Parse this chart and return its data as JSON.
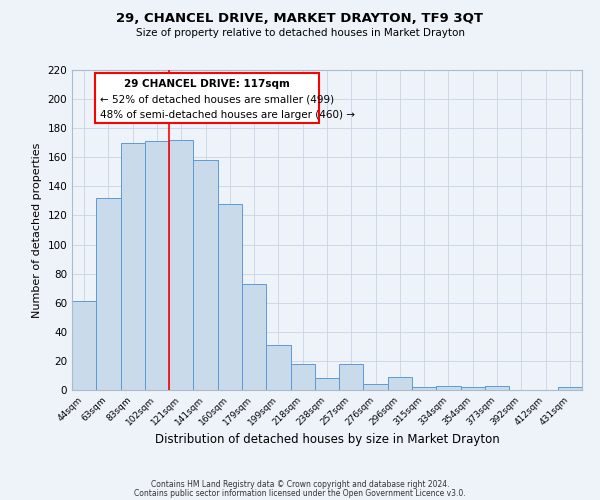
{
  "title": "29, CHANCEL DRIVE, MARKET DRAYTON, TF9 3QT",
  "subtitle": "Size of property relative to detached houses in Market Drayton",
  "xlabel": "Distribution of detached houses by size in Market Drayton",
  "ylabel": "Number of detached properties",
  "footer_line1": "Contains HM Land Registry data © Crown copyright and database right 2024.",
  "footer_line2": "Contains public sector information licensed under the Open Government Licence v3.0.",
  "bin_labels": [
    "44sqm",
    "63sqm",
    "83sqm",
    "102sqm",
    "121sqm",
    "141sqm",
    "160sqm",
    "179sqm",
    "199sqm",
    "218sqm",
    "238sqm",
    "257sqm",
    "276sqm",
    "296sqm",
    "315sqm",
    "334sqm",
    "354sqm",
    "373sqm",
    "392sqm",
    "412sqm",
    "431sqm"
  ],
  "bar_values": [
    61,
    132,
    170,
    171,
    172,
    158,
    128,
    73,
    31,
    18,
    8,
    18,
    4,
    9,
    2,
    3,
    2,
    3,
    0,
    0,
    2
  ],
  "bar_color": "#c9daea",
  "bar_edge_color": "#5b9bd5",
  "grid_color": "#c8d4e3",
  "red_line_index": 4,
  "annotation_title": "29 CHANCEL DRIVE: 117sqm",
  "annotation_line1": "← 52% of detached houses are smaller (499)",
  "annotation_line2": "48% of semi-detached houses are larger (460) →",
  "ylim": [
    0,
    220
  ],
  "yticks": [
    0,
    20,
    40,
    60,
    80,
    100,
    120,
    140,
    160,
    180,
    200,
    220
  ],
  "background_color": "#eef2f9",
  "plot_bg_color": "#eef2f9"
}
